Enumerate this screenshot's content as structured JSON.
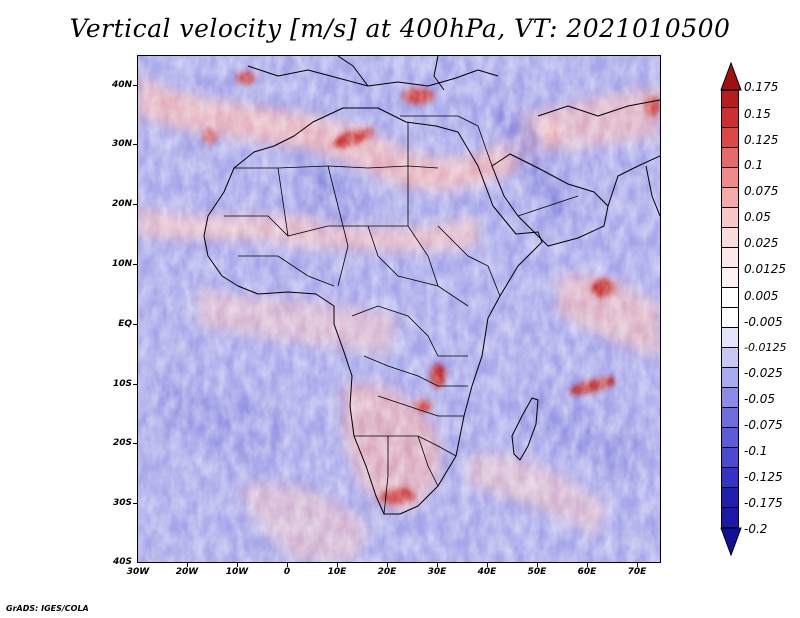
{
  "figure": {
    "title": "Vertical velocity [m/s] at 400hPa, VT: 2021010500",
    "footer": "GrADS: IGES/COLA"
  },
  "map": {
    "region": "Africa",
    "longitude_range": [
      -30,
      75
    ],
    "latitude_range": [
      -40,
      45
    ],
    "field": "Vertical velocity at 400hPa",
    "units": "m/s",
    "dominant_colors": {
      "ocean_background": "#9e9ee8",
      "positive": "#f2a8a8",
      "strong_positive": "#c41e1e",
      "negative": "#7f7fe0"
    }
  },
  "axes": {
    "y_ticks": [
      "40N",
      "30N",
      "20N",
      "10N",
      "EQ",
      "10S",
      "20S",
      "30S",
      "40S"
    ],
    "x_ticks": [
      "30W",
      "20W",
      "10W",
      "0",
      "10E",
      "20E",
      "30E",
      "40E",
      "50E",
      "60E",
      "70E"
    ]
  },
  "colorbar": {
    "labels": [
      "0.175",
      "0.15",
      "0.125",
      "0.1",
      "0.075",
      "0.05",
      "0.025",
      "0.0125",
      "0.005",
      "-0.005",
      "-0.0125",
      "-0.025",
      "-0.05",
      "-0.075",
      "-0.1",
      "-0.125",
      "-0.175",
      "-0.2"
    ],
    "colors": [
      "#a01010",
      "#b81c1c",
      "#cc3030",
      "#dc4848",
      "#e66a6a",
      "#ee8a8a",
      "#f4aaaa",
      "#f8c8c8",
      "#fbe2e2",
      "#ffffff",
      "#e4e4fa",
      "#c8c8f4",
      "#aaaaee",
      "#8c8ce6",
      "#6e6ede",
      "#5050d4",
      "#3434c4",
      "#2020b0",
      "#10109a"
    ]
  }
}
